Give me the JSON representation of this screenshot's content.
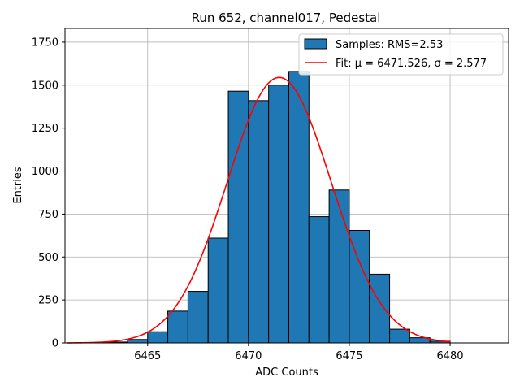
{
  "chart_data": {
    "type": "bar",
    "title": "Run 652, channel017, Pedestal",
    "xlabel": "ADC Counts",
    "ylabel": "Entries",
    "xlim": [
      6460.9,
      6482.9
    ],
    "ylim": [
      0,
      1830
    ],
    "xticks": [
      6465,
      6470,
      6475,
      6480
    ],
    "yticks": [
      0,
      250,
      500,
      750,
      1000,
      1250,
      1500,
      1750
    ],
    "grid": true,
    "legend_position": "top-right",
    "colors": {
      "bars": "#1f77b4",
      "bar_edge": "#000000",
      "fit": "#ff0000",
      "grid": "#b0b0b0"
    },
    "series": [
      {
        "name": "Samples: RMS=2.53",
        "type": "histogram",
        "bin_edges": [
          6463,
          6464,
          6465,
          6466,
          6467,
          6468,
          6469,
          6470,
          6471,
          6472,
          6473,
          6474,
          6475,
          6476,
          6477,
          6478,
          6479,
          6480
        ],
        "counts": [
          5,
          20,
          65,
          185,
          300,
          610,
          1465,
          1410,
          1500,
          1580,
          735,
          890,
          655,
          400,
          80,
          30,
          10
        ]
      },
      {
        "name": "Fit: μ = 6471.526, σ = 2.577",
        "type": "line",
        "mu": 6471.526,
        "sigma": 2.577,
        "amplitude": 1545,
        "x_range": [
          6461,
          6480
        ]
      }
    ]
  }
}
